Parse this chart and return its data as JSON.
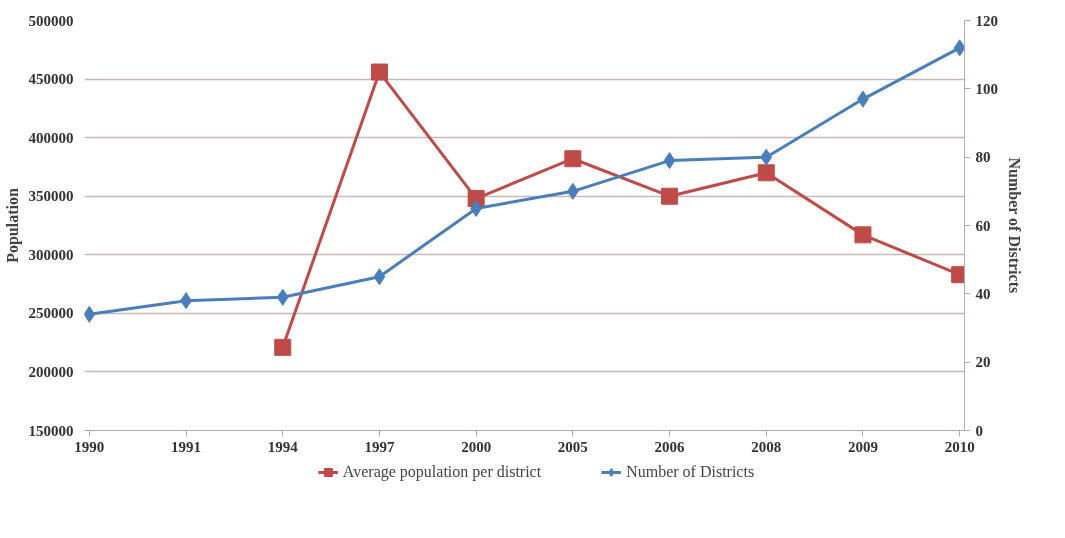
{
  "chart_data": {
    "type": "line",
    "ylabel": "Population",
    "y2label": "Number of Districts",
    "categories": [
      "1990",
      "1991",
      "1994",
      "1997",
      "2000",
      "2005",
      "2006",
      "2008",
      "2009",
      "2010"
    ],
    "series": [
      {
        "name": "Average population per district",
        "color": "#be4b48",
        "marker": "square",
        "values": [
          null,
          null,
          221000,
          456000,
          348000,
          382000,
          350000,
          370000,
          317000,
          283000
        ]
      },
      {
        "name": "Number of Districts",
        "color": "#4a7ebb",
        "marker": "diamond",
        "axis": "y2",
        "values": [
          34,
          38,
          39,
          45,
          65,
          70,
          79,
          80,
          97,
          112
        ]
      }
    ],
    "ylim": [
      150000,
      500000
    ],
    "yticks": [
      150000,
      200000,
      250000,
      300000,
      350000,
      400000,
      450000,
      500000
    ],
    "y2lim": [
      0,
      120
    ],
    "y2ticks": [
      0,
      20,
      40,
      60,
      80,
      100,
      120
    ],
    "grid": "y",
    "legend": "bottom"
  }
}
